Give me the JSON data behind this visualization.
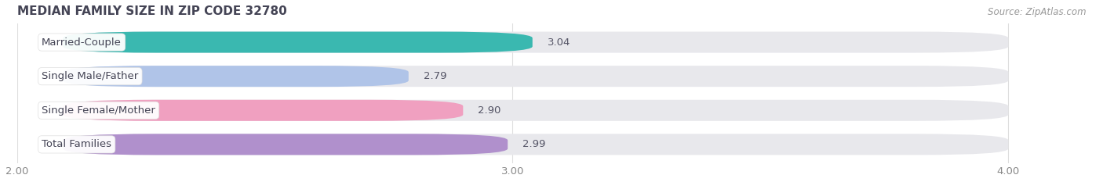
{
  "title": "MEDIAN FAMILY SIZE IN ZIP CODE 32780",
  "source": "Source: ZipAtlas.com",
  "categories": [
    "Married-Couple",
    "Single Male/Father",
    "Single Female/Mother",
    "Total Families"
  ],
  "values": [
    3.04,
    2.79,
    2.9,
    2.99
  ],
  "bar_colors": [
    "#3ab8b0",
    "#b0c4e8",
    "#f0a0c0",
    "#b090cc"
  ],
  "bar_bg_color": "#e8e8ec",
  "xlim_min": 2.0,
  "xlim_max": 4.0,
  "xticks": [
    2.0,
    3.0,
    4.0
  ],
  "xtick_labels": [
    "2.00",
    "3.00",
    "4.00"
  ],
  "bar_height": 0.62,
  "label_fontsize": 9.5,
  "title_fontsize": 11,
  "value_fontsize": 9.5,
  "source_fontsize": 8.5,
  "background_color": "#ffffff",
  "title_color": "#444455",
  "tick_color": "#888888",
  "value_color": "#555566",
  "label_color": "#444455",
  "grid_color": "#dddddd",
  "source_color": "#999999"
}
